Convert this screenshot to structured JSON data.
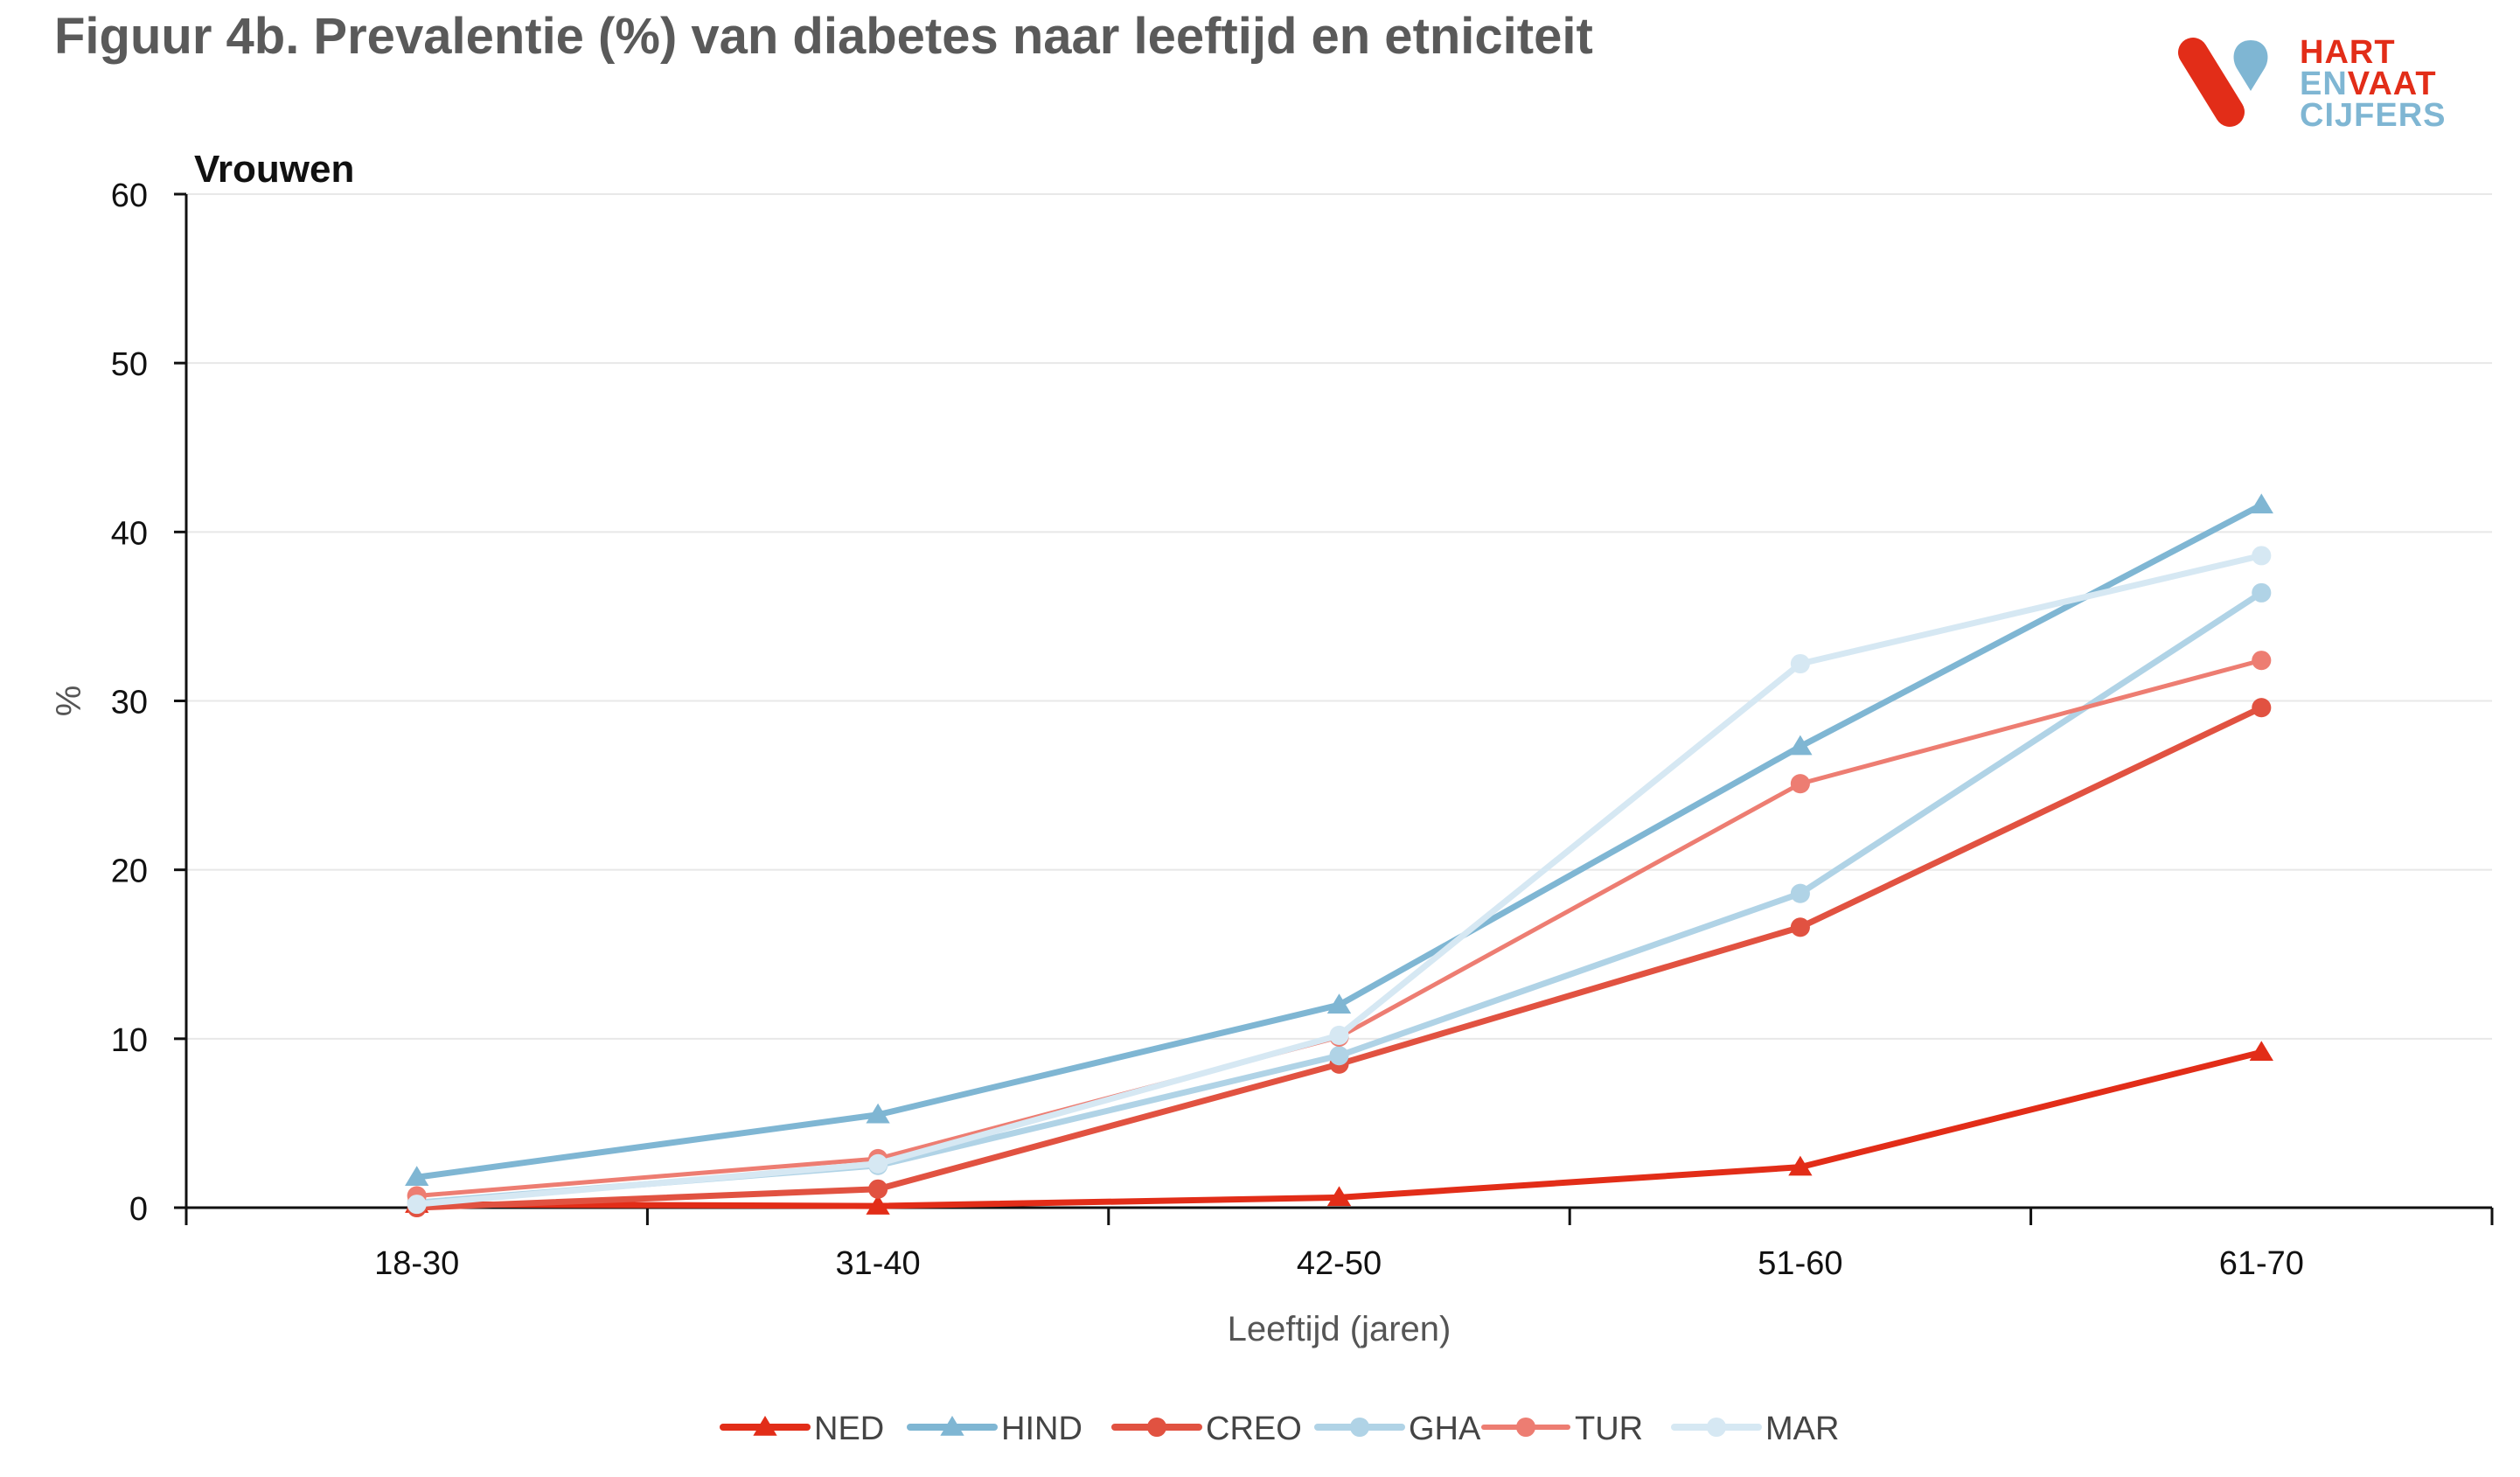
{
  "title": "Figuur 4b. Prevalentie (%) van diabetes naar leeftijd en etniciteit",
  "logo": {
    "line1": "HART",
    "line2_a": "EN",
    "line2_b": "VAAT",
    "line3": "CIJFERS",
    "colors": {
      "red": "#e22d18",
      "blue": "#7fb6d3"
    }
  },
  "chart_data": {
    "type": "line",
    "panel_label": "Vrouwen",
    "categories": [
      "18-30",
      "31-40",
      "42-50",
      "51-60",
      "61-70"
    ],
    "xlabel": "Leeftijd (jaren)",
    "ylabel": "%",
    "ylim": [
      0,
      60
    ],
    "yticks": [
      0,
      10,
      20,
      30,
      40,
      50,
      60
    ],
    "grid": true,
    "legend_position": "bottom",
    "series": [
      {
        "name": "NED",
        "values": [
          0.2,
          0.1,
          0.6,
          2.4,
          9.2
        ],
        "color": "#e22d18",
        "marker": "triangle",
        "width": 7
      },
      {
        "name": "HIND",
        "values": [
          1.8,
          5.5,
          12.0,
          27.3,
          41.6
        ],
        "color": "#7fb6d3",
        "marker": "triangle",
        "width": 7
      },
      {
        "name": "CREO",
        "values": [
          0.0,
          1.1,
          8.5,
          16.6,
          29.6
        ],
        "color": "#e15241",
        "marker": "circle",
        "width": 7
      },
      {
        "name": "GHA",
        "values": [
          0.3,
          2.5,
          9.0,
          18.6,
          36.4
        ],
        "color": "#b0d3e6",
        "marker": "circle",
        "width": 7
      },
      {
        "name": "TUR",
        "values": [
          0.7,
          2.9,
          10.1,
          25.1,
          32.4
        ],
        "color": "#ed7d72",
        "marker": "circle",
        "width": 5
      },
      {
        "name": "MAR",
        "values": [
          0.2,
          2.6,
          10.2,
          32.2,
          38.6
        ],
        "color": "#d6e8f3",
        "marker": "circle",
        "width": 7
      }
    ]
  }
}
